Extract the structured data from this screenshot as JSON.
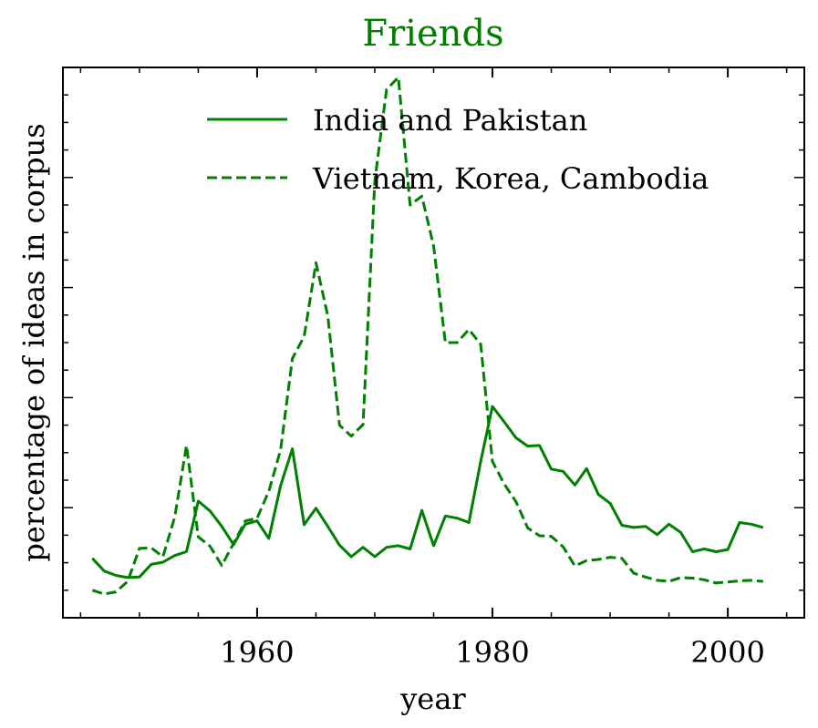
{
  "chart_data": {
    "type": "line",
    "title": "Friends",
    "xlabel": "year",
    "ylabel": "percentage of ideas in corpus",
    "xlim": [
      1943.5,
      2006.5
    ],
    "ylim": [
      0,
      1
    ],
    "x_ticks": [
      1960,
      1980,
      2000
    ],
    "x_tick_labels": [
      "1960",
      "1980",
      "2000"
    ],
    "y_tick_labels_visible": false,
    "grid": false,
    "legend_position": "top-right",
    "color": "#008000",
    "series": [
      {
        "name": "India and Pakistan",
        "style": "solid",
        "x": [
          1946,
          1947,
          1948,
          1949,
          1950,
          1951,
          1952,
          1953,
          1954,
          1955,
          1956,
          1957,
          1958,
          1959,
          1960,
          1961,
          1962,
          1963,
          1964,
          1965,
          1966,
          1967,
          1968,
          1969,
          1970,
          1971,
          1972,
          1973,
          1974,
          1975,
          1976,
          1977,
          1978,
          1979,
          1980,
          1981,
          1982,
          1983,
          1984,
          1985,
          1986,
          1987,
          1988,
          1989,
          1990,
          1991,
          1992,
          1993,
          1994,
          1995,
          1996,
          1997,
          1998,
          1999,
          2000,
          2001,
          2002,
          2003
        ],
        "y": [
          0.108,
          0.085,
          0.077,
          0.073,
          0.074,
          0.097,
          0.101,
          0.113,
          0.12,
          0.212,
          0.194,
          0.166,
          0.133,
          0.17,
          0.176,
          0.144,
          0.24,
          0.307,
          0.169,
          0.199,
          0.166,
          0.132,
          0.111,
          0.128,
          0.111,
          0.128,
          0.131,
          0.125,
          0.195,
          0.131,
          0.185,
          0.181,
          0.173,
          0.284,
          0.384,
          0.356,
          0.327,
          0.312,
          0.313,
          0.27,
          0.266,
          0.241,
          0.271,
          0.224,
          0.208,
          0.168,
          0.164,
          0.166,
          0.151,
          0.17,
          0.155,
          0.12,
          0.125,
          0.12,
          0.124,
          0.173,
          0.17,
          0.164
        ]
      },
      {
        "name": "Vietnam, Korea, Cambodia",
        "style": "dashed",
        "x": [
          1946,
          1947,
          1948,
          1949,
          1950,
          1951,
          1952,
          1953,
          1954,
          1955,
          1956,
          1957,
          1958,
          1959,
          1960,
          1961,
          1962,
          1963,
          1964,
          1965,
          1966,
          1967,
          1968,
          1969,
          1970,
          1971,
          1972,
          1973,
          1974,
          1975,
          1976,
          1977,
          1978,
          1979,
          1980,
          1981,
          1982,
          1983,
          1984,
          1985,
          1986,
          1987,
          1988,
          1989,
          1990,
          1991,
          1992,
          1993,
          1994,
          1995,
          1996,
          1997,
          1998,
          1999,
          2000,
          2001,
          2002,
          2003
        ],
        "y": [
          0.05,
          0.043,
          0.047,
          0.066,
          0.126,
          0.127,
          0.111,
          0.183,
          0.313,
          0.147,
          0.13,
          0.095,
          0.135,
          0.176,
          0.181,
          0.23,
          0.305,
          0.471,
          0.511,
          0.645,
          0.549,
          0.35,
          0.33,
          0.351,
          0.794,
          0.96,
          0.982,
          0.75,
          0.766,
          0.675,
          0.5,
          0.5,
          0.524,
          0.497,
          0.284,
          0.243,
          0.211,
          0.163,
          0.149,
          0.148,
          0.129,
          0.094,
          0.104,
          0.106,
          0.11,
          0.108,
          0.081,
          0.074,
          0.068,
          0.066,
          0.073,
          0.072,
          0.069,
          0.063,
          0.065,
          0.067,
          0.068,
          0.066
        ]
      }
    ]
  }
}
